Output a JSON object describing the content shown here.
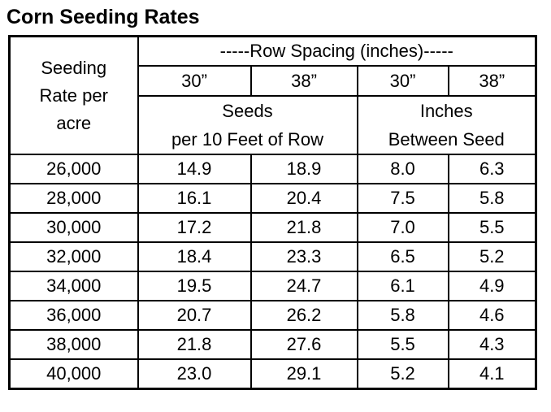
{
  "page": {
    "title": "Corn Seeding Rates"
  },
  "colors": {
    "background": "#ffffff",
    "text": "#000000",
    "border": "#000000"
  },
  "table": {
    "corner_lines": [
      "Seeding",
      "Rate per",
      "acre"
    ],
    "row_spacing_header": "-----Row Spacing (inches)-----",
    "spacing_cols": [
      "30”",
      "38”",
      "30”",
      "38”"
    ],
    "group_headers": [
      [
        "Seeds",
        "per 10 Feet of Row"
      ],
      [
        "Inches",
        "Between Seed"
      ]
    ],
    "rows": [
      [
        "26,000",
        "14.9",
        "18.9",
        "8.0",
        "6.3"
      ],
      [
        "28,000",
        "16.1",
        "20.4",
        "7.5",
        "5.8"
      ],
      [
        "30,000",
        "17.2",
        "21.8",
        "7.0",
        "5.5"
      ],
      [
        "32,000",
        "18.4",
        "23.3",
        "6.5",
        "5.2"
      ],
      [
        "34,000",
        "19.5",
        "24.7",
        "6.1",
        "4.9"
      ],
      [
        "36,000",
        "20.7",
        "26.2",
        "5.8",
        "4.6"
      ],
      [
        "38,000",
        "21.8",
        "27.6",
        "5.5",
        "4.3"
      ],
      [
        "40,000",
        "23.0",
        "29.1",
        "5.2",
        "4.1"
      ]
    ]
  },
  "chart_data": {
    "type": "table",
    "title": "Corn Seeding Rates",
    "row_header_label": "Seeding Rate per acre",
    "column_groups": [
      {
        "group": "Seeds per 10 Feet of Row",
        "columns": [
          "30”",
          "38”"
        ]
      },
      {
        "group": "Inches Between Seed",
        "columns": [
          "30”",
          "38”"
        ]
      }
    ],
    "seeding_rates_per_acre": [
      26000,
      28000,
      30000,
      32000,
      34000,
      36000,
      38000,
      40000
    ],
    "series": [
      {
        "name": "Seeds per 10 Feet of Row, 30” rows",
        "values": [
          14.9,
          16.1,
          17.2,
          18.4,
          19.5,
          20.7,
          21.8,
          23.0
        ]
      },
      {
        "name": "Seeds per 10 Feet of Row, 38” rows",
        "values": [
          18.9,
          20.4,
          21.8,
          23.3,
          24.7,
          26.2,
          27.6,
          29.1
        ]
      },
      {
        "name": "Inches Between Seed, 30” rows",
        "values": [
          8.0,
          7.5,
          7.0,
          6.5,
          6.1,
          5.8,
          5.5,
          5.2
        ]
      },
      {
        "name": "Inches Between Seed, 38” rows",
        "values": [
          6.3,
          5.8,
          5.5,
          5.2,
          4.9,
          4.6,
          4.3,
          4.1
        ]
      }
    ]
  }
}
